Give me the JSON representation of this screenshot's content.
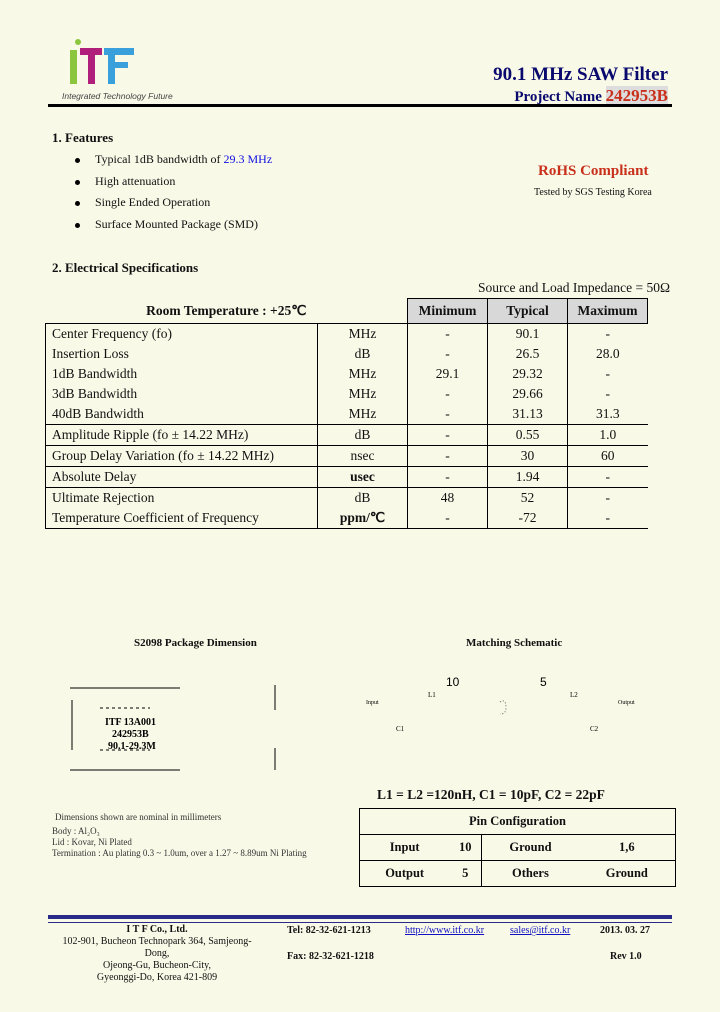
{
  "header": {
    "logo_text": "iTF",
    "logo_tagline": "Integrated Technology Future",
    "title": "90.1 MHz SAW Filter",
    "project_label": "Project Name",
    "project_name": "242953B"
  },
  "features": {
    "heading": "1. Features",
    "items": [
      {
        "text": "Typical 1dB bandwidth of ",
        "highlight": "29.3 MHz"
      },
      {
        "text": "High attenuation"
      },
      {
        "text": "Single Ended Operation"
      },
      {
        "text": "Surface Mounted Package (SMD)"
      }
    ],
    "rohs": "RoHS Compliant",
    "rohs_note": "Tested by SGS Testing Korea"
  },
  "specs": {
    "heading": "2. Electrical Specifications",
    "impedance": "Source and Load Impedance = 50Ω",
    "room_temp": "Room Temperature :    +25℃",
    "columns": [
      "Minimum",
      "Typical",
      "Maximum"
    ],
    "rows": [
      {
        "param": "Center Frequency (fo)",
        "unit": "MHz",
        "min": "-",
        "typ": "90.1",
        "max": "-"
      },
      {
        "param": "Insertion Loss",
        "unit": "dB",
        "min": "-",
        "typ": "26.5",
        "max": "28.0"
      },
      {
        "param": "1dB Bandwidth",
        "unit": "MHz",
        "min": "29.1",
        "typ": "29.32",
        "max": "-"
      },
      {
        "param": "3dB Bandwidth",
        "unit": "MHz",
        "min": "-",
        "typ": "29.66",
        "max": "-"
      },
      {
        "param": "40dB Bandwidth",
        "unit": "MHz",
        "min": "-",
        "typ": "31.13",
        "max": "31.3"
      },
      {
        "param": "Amplitude Ripple (fo ± 14.22 MHz)",
        "unit": "dB",
        "min": "-",
        "typ": "0.55",
        "max": "1.0"
      },
      {
        "param": "Group Delay Variation (fo ± 14.22 MHz)",
        "unit": "nsec",
        "min": "-",
        "typ": "30",
        "max": "60"
      },
      {
        "param": "Absolute Delay",
        "unit": "usec",
        "min": "-",
        "typ": "1.94",
        "max": "-"
      },
      {
        "param": "Ultimate Rejection",
        "unit": "dB",
        "min": "48",
        "typ": "52",
        "max": "-"
      },
      {
        "param": "Temperature Coefficient of Frequency",
        "unit": "ppm/℃",
        "min": "-",
        "typ": "-72",
        "max": "-"
      }
    ]
  },
  "package": {
    "title": "S2098 Package Dimension",
    "marking": [
      "ITF 13A001",
      "242953B",
      "90.1-29.3M"
    ],
    "note": "Dimensions shown are nominal in millimeters",
    "body": "Body : Al₂O₃",
    "lid": "Lid : Kovar, Ni Plated",
    "termination": "Termination : Au plating 0.3 ~ 1.0um, over a 1.27 ~ 8.89um Ni Plating"
  },
  "schematic": {
    "title": "Matching Schematic",
    "pin_left": "10",
    "pin_right": "5",
    "l1": "L1",
    "l2": "L2",
    "c1": "C1",
    "c2": "C2",
    "input": "Input",
    "output": "Output",
    "values": "L1 = L2 =120nH, C1 = 10pF, C2 = 22pF"
  },
  "pins": {
    "title": "Pin Configuration",
    "rows": [
      [
        "Input",
        "10",
        "Ground",
        "1,6"
      ],
      [
        "Output",
        "5",
        "Others",
        "Ground"
      ]
    ]
  },
  "footer": {
    "company": "I T F   Co., Ltd.",
    "addr1": "102-901, Bucheon Technopark 364, Samjeong-Dong,",
    "addr2": "Ojeong-Gu, Bucheon-City,",
    "addr3": "Gyeonggi-Do, Korea 421-809",
    "tel": "Tel: 82-32-621-1213",
    "fax": "Fax: 82-32-621-1218",
    "web": "http://www.itf.co.kr",
    "email": "sales@itf.co.kr",
    "date": "2013. 03. 27",
    "rev": "Rev 1.0"
  },
  "colors": {
    "title": "#0a0a6e",
    "accent": "#c8301c",
    "highlight": "#1010e0"
  }
}
